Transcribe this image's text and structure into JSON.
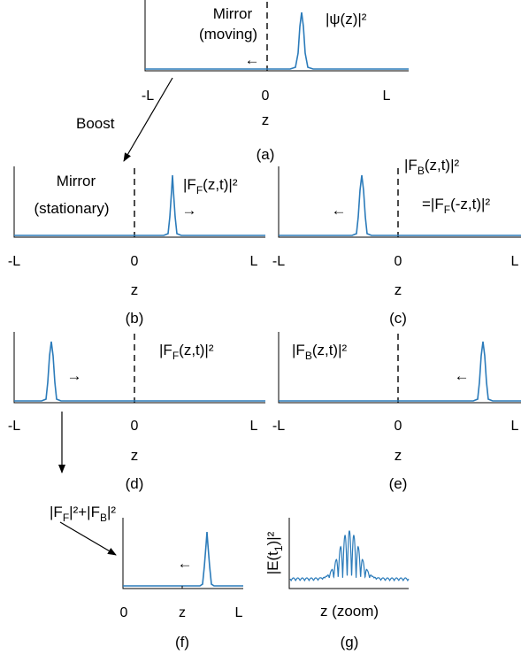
{
  "panels": {
    "a": {
      "caption": "(a)",
      "mirror_label_1": "Mirror",
      "mirror_label_2": "(moving)",
      "curve_label": "|ψ(z)|²",
      "arrow": "←",
      "tick_left": "-L",
      "tick_mid": "0",
      "tick_right": "L",
      "xlabel": "z"
    },
    "b": {
      "caption": "(b)",
      "mirror_label_1": "Mirror",
      "mirror_label_2": "(stationary)",
      "curve_label": "|F_F(z,t)|²",
      "arrow": "→",
      "tick_left": "-L",
      "tick_mid": "0",
      "tick_right": "L",
      "xlabel": "z"
    },
    "c": {
      "caption": "(c)",
      "curve_label_1": "|F_B(z,t)|²",
      "curve_label_2": "=|F_F(-z,t)|²",
      "arrow": "←",
      "tick_left": "-L",
      "tick_mid": "0",
      "tick_right": "L",
      "xlabel": "z"
    },
    "d": {
      "caption": "(d)",
      "curve_label": "|F_F(z,t)|²",
      "arrow": "→",
      "tick_left": "-L",
      "tick_mid": "0",
      "tick_right": "L",
      "xlabel": "z"
    },
    "e": {
      "caption": "(e)",
      "curve_label": "|F_B(z,t)|²",
      "arrow": "←",
      "tick_left": "-L",
      "tick_mid": "0",
      "tick_right": "L",
      "xlabel": "z"
    },
    "f": {
      "caption": "(f)",
      "sum_label": "|F_F|²+|F_B|²",
      "arrow": "←",
      "tick_left": "0",
      "tick_mid": "z",
      "tick_right": "L"
    },
    "g": {
      "caption": "(g)",
      "ylabel": "|E(t_1)|²",
      "xlabel": "z (zoom)"
    }
  },
  "boost_label": "Boost",
  "colors": {
    "curve": "#2b7bba",
    "axis": "#000000"
  }
}
